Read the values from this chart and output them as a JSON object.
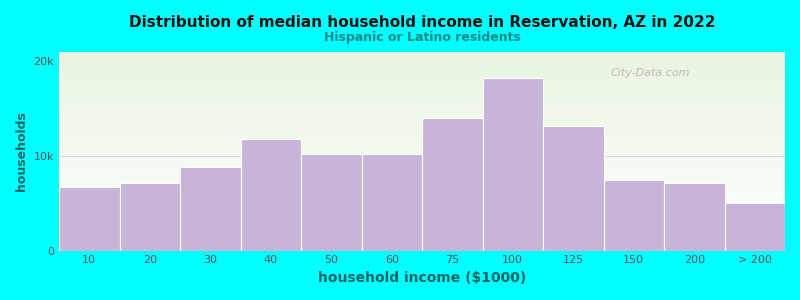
{
  "title": "Distribution of median household income in Reservation, AZ in 2022",
  "subtitle": "Hispanic or Latino residents",
  "xlabel": "household income ($1000)",
  "ylabel": "households",
  "background_outer": "#00FFFF",
  "background_inner_top": "#e8f5e0",
  "background_inner_bottom": "#ffffff",
  "bar_color": "#c8b4d8",
  "bar_edge_color": "#ffffff",
  "title_color": "#111111",
  "subtitle_color": "#008888",
  "axis_label_color": "#006666",
  "tick_label_color": "#555555",
  "watermark": "City-Data.com",
  "bar_labels": [
    "10",
    "20",
    "30",
    "40",
    "50",
    "60",
    "75",
    "100",
    "125",
    "150",
    "200",
    "> 200"
  ],
  "values": [
    6700,
    7100,
    8800,
    11800,
    10200,
    10200,
    14000,
    18200,
    13200,
    7500,
    7100,
    5000
  ],
  "ylim": [
    0,
    21000
  ],
  "yticks": [
    0,
    10000,
    20000
  ],
  "ytick_labels": [
    "0",
    "10k",
    "20k"
  ],
  "hline_y": 10000,
  "hline_color": "#cccccc"
}
